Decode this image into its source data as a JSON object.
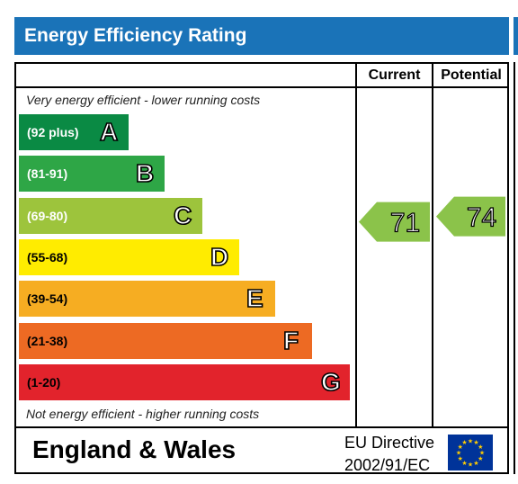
{
  "header": {
    "title": "Energy Efficiency Rating"
  },
  "columns": {
    "current": "Current",
    "potential": "Potential"
  },
  "notes": {
    "top": "Very energy efficient - lower running costs",
    "bottom": "Not energy efficient - higher running costs"
  },
  "chart_data": {
    "type": "bar",
    "title": "Energy Efficiency Rating",
    "bands": [
      {
        "range": "(92 plus)",
        "letter": "A",
        "min": 92,
        "max": 100,
        "color": "#0a8a44",
        "text_color": "#ffffff"
      },
      {
        "range": "(81-91)",
        "letter": "B",
        "min": 81,
        "max": 91,
        "color": "#2ea646",
        "text_color": "#ffffff"
      },
      {
        "range": "(69-80)",
        "letter": "C",
        "min": 69,
        "max": 80,
        "color": "#9dc43c",
        "text_color": "#ffffff"
      },
      {
        "range": "(55-68)",
        "letter": "D",
        "min": 55,
        "max": 68,
        "color": "#ffec00",
        "text_color": "#000000"
      },
      {
        "range": "(39-54)",
        "letter": "E",
        "min": 39,
        "max": 54,
        "color": "#f6ad22",
        "text_color": "#000000"
      },
      {
        "range": "(21-38)",
        "letter": "F",
        "min": 21,
        "max": 38,
        "color": "#ed6a23",
        "text_color": "#000000"
      },
      {
        "range": "(1-20)",
        "letter": "G",
        "min": 1,
        "max": 20,
        "color": "#e2232c",
        "text_color": "#000000"
      }
    ],
    "current": {
      "value": "71",
      "band": "C",
      "color": "#8bc34a"
    },
    "potential": {
      "value": "74",
      "band": "C",
      "color": "#8bc34a"
    }
  },
  "footer": {
    "region": "England & Wales",
    "directive_line1": "EU Directive",
    "directive_line2": "2002/91/EC"
  },
  "flag_colors": {
    "background": "#003399",
    "stars": "#ffcc00"
  }
}
